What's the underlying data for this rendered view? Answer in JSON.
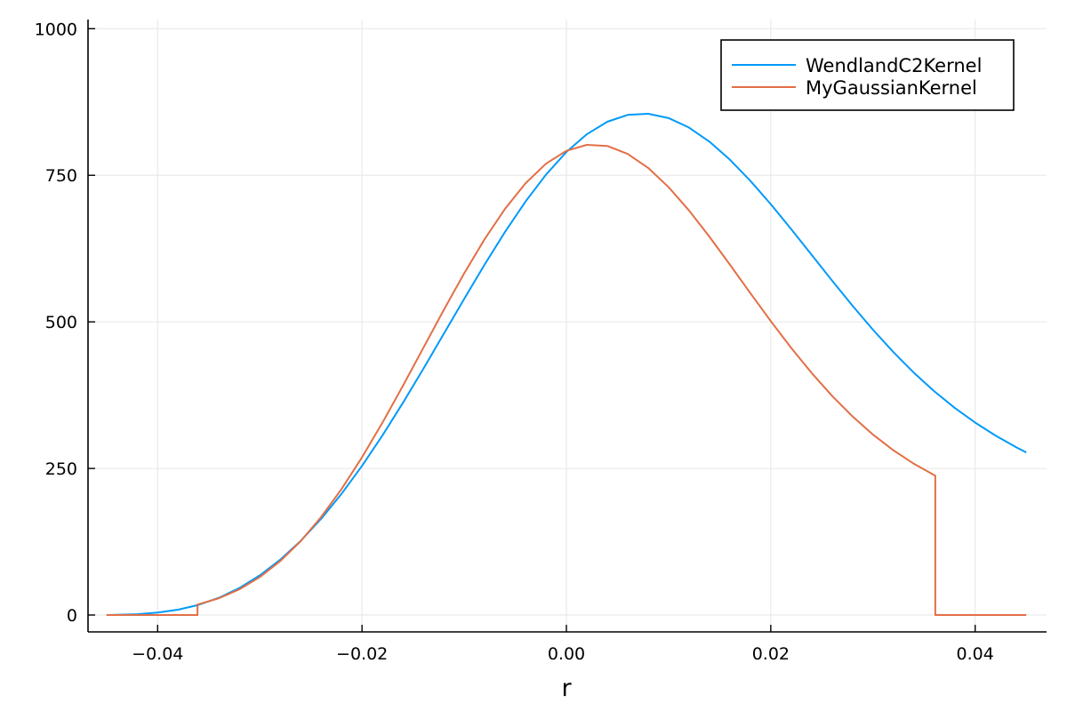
{
  "chart_data": {
    "type": "line",
    "title": "",
    "xlabel": "r",
    "ylabel": "",
    "xlim": [
      -0.048,
      0.048
    ],
    "ylim": [
      -30,
      1010
    ],
    "x_ticks": [
      -0.04,
      -0.02,
      0.0,
      0.02,
      0.04
    ],
    "x_tick_labels": [
      "−0.04",
      "−0.02",
      "0.00",
      "0.02",
      "0.04"
    ],
    "y_ticks": [
      0,
      250,
      500,
      750,
      1000
    ],
    "y_tick_labels": [
      "0",
      "250",
      "500",
      "750",
      "1000"
    ],
    "grid": true,
    "legend_position": "top-right",
    "series": [
      {
        "name": "WendlandC2Kernel",
        "color": "#009af9",
        "x": [
          -0.045,
          -0.044,
          -0.042,
          -0.04,
          -0.038,
          -0.036,
          -0.034,
          -0.032,
          -0.03,
          -0.028,
          -0.026,
          -0.024,
          -0.022,
          -0.02,
          -0.018,
          -0.016,
          -0.014,
          -0.012,
          -0.01,
          -0.008,
          -0.006,
          -0.004,
          -0.002,
          0.0,
          0.002,
          0.004,
          0.006,
          0.008,
          0.01,
          0.012,
          0.014,
          0.016,
          0.018,
          0.02,
          0.022,
          0.024,
          0.026,
          0.028,
          0.03,
          0.032,
          0.034,
          0.036,
          0.038,
          0.04,
          0.042,
          0.044,
          0.045
        ],
        "y": [
          0.0,
          0.3,
          1.4,
          4.1,
          9.1,
          17.3,
          29.4,
          46.0,
          67.6,
          94.4,
          126.5,
          164.1,
          206.8,
          254.4,
          306.3,
          361.8,
          419.9,
          479.6,
          539.3,
          597.8,
          653.6,
          705.2,
          751.0,
          789.7,
          820.0,
          841.3,
          853.0,
          855.0,
          847.6,
          831.4,
          807.3,
          776.6,
          740.6,
          700.7,
          658.1,
          614.3,
          570.4,
          527.5,
          486.6,
          448.4,
          413.3,
          381.6,
          353.3,
          328.2,
          306.0,
          286.3,
          277.3
        ]
      },
      {
        "name": "MyGaussianKernel",
        "color": "#e26f46",
        "x": [
          -0.045,
          -0.044,
          -0.042,
          -0.04,
          -0.038,
          -0.0361,
          -0.0361,
          -0.036,
          -0.034,
          -0.032,
          -0.03,
          -0.028,
          -0.026,
          -0.024,
          -0.022,
          -0.02,
          -0.018,
          -0.016,
          -0.014,
          -0.012,
          -0.01,
          -0.008,
          -0.006,
          -0.004,
          -0.002,
          0.0,
          0.002,
          0.004,
          0.006,
          0.008,
          0.01,
          0.012,
          0.014,
          0.016,
          0.018,
          0.02,
          0.022,
          0.024,
          0.026,
          0.028,
          0.03,
          0.032,
          0.034,
          0.036,
          0.0361,
          0.0361,
          0.038,
          0.04,
          0.042,
          0.044,
          0.045
        ],
        "y": [
          0,
          0,
          0,
          0,
          0,
          0,
          18.0,
          18.3,
          28.6,
          43.8,
          64.7,
          92.0,
          126.0,
          167.1,
          215.0,
          269.0,
          328.1,
          390.9,
          455.6,
          520.3,
          582.9,
          641.1,
          692.9,
          736.3,
          769.8,
          791.7,
          801.9,
          800.0,
          786.5,
          762.6,
          729.8,
          690.0,
          645.2,
          597.6,
          549.0,
          501.3,
          455.5,
          412.8,
          373.8,
          338.7,
          307.8,
          280.9,
          258.0,
          238.6,
          237.8,
          0,
          0,
          0,
          0,
          0,
          0
        ]
      }
    ]
  }
}
